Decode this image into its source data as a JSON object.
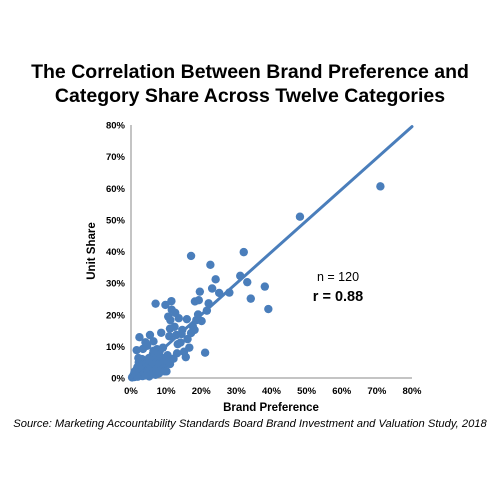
{
  "chart_data": {
    "type": "scatter",
    "title_lines": [
      "The Correlation Between Brand Preference and",
      "Category Share Across Twelve Categories"
    ],
    "xlabel": "Brand Preference",
    "ylabel": "Unit Share",
    "xlim": [
      0,
      80
    ],
    "ylim": [
      0,
      80
    ],
    "xticks": [
      "0%",
      "10%",
      "20%",
      "30%",
      "40%",
      "50%",
      "60%",
      "70%",
      "80%"
    ],
    "yticks": [
      "0%",
      "10%",
      "20%",
      "30%",
      "40%",
      "50%",
      "60%",
      "70%",
      "80%"
    ],
    "grid": false,
    "annotations": [
      "n = 120",
      "r = 0.88"
    ],
    "series": [
      {
        "color": "#4a7ebb",
        "points": [
          [
            0.3,
            0.2
          ],
          [
            0.6,
            0.5
          ],
          [
            0.8,
            1.1
          ],
          [
            1.0,
            0.3
          ],
          [
            1.2,
            1.8
          ],
          [
            1.4,
            0.7
          ],
          [
            1.5,
            2.5
          ],
          [
            1.6,
            1.3
          ],
          [
            1.8,
            3.4
          ],
          [
            1.9,
            0.4
          ],
          [
            2.0,
            1.7
          ],
          [
            2.2,
            5.0
          ],
          [
            2.3,
            2.4
          ],
          [
            2.5,
            0.9
          ],
          [
            2.6,
            4.1
          ],
          [
            2.8,
            1.6
          ],
          [
            3.0,
            3.0
          ],
          [
            3.1,
            6.0
          ],
          [
            3.3,
            0.6
          ],
          [
            3.5,
            2.2
          ],
          [
            3.6,
            4.5
          ],
          [
            3.8,
            1.4
          ],
          [
            4.0,
            3.8
          ],
          [
            4.2,
            0.8
          ],
          [
            4.4,
            2.9
          ],
          [
            4.6,
            5.5
          ],
          [
            4.8,
            1.9
          ],
          [
            5.0,
            3.6
          ],
          [
            5.2,
            0.5
          ],
          [
            5.4,
            2.6
          ],
          [
            5.6,
            4.9
          ],
          [
            5.8,
            1.2
          ],
          [
            6.0,
            3.3
          ],
          [
            6.2,
            7.5
          ],
          [
            6.5,
            2.0
          ],
          [
            6.8,
            4.2
          ],
          [
            7.0,
            1.0
          ],
          [
            7.2,
            2.8
          ],
          [
            7.5,
            5.8
          ],
          [
            7.8,
            3.9
          ],
          [
            8.0,
            1.5
          ],
          [
            8.3,
            2.4
          ],
          [
            8.6,
            6.5
          ],
          [
            9.0,
            4.8
          ],
          [
            9.3,
            3.1
          ],
          [
            9.6,
            2.1
          ],
          [
            10.0,
            5.5
          ],
          [
            10.4,
            7.2
          ],
          [
            1.0,
            2.0
          ],
          [
            1.7,
            2.8
          ],
          [
            2.9,
            3.8
          ],
          [
            3.7,
            5.2
          ],
          [
            4.3,
            4.6
          ],
          [
            5.1,
            6.3
          ],
          [
            5.9,
            5.0
          ],
          [
            6.6,
            6.6
          ],
          [
            3.4,
            9.2
          ],
          [
            2.4,
            12.9
          ],
          [
            1.6,
            8.8
          ],
          [
            4.6,
            10.2
          ],
          [
            5.4,
            13.6
          ],
          [
            6.4,
            11.6
          ],
          [
            7.4,
            9.1
          ],
          [
            8.2,
            8.6
          ],
          [
            7.0,
            23.5
          ],
          [
            9.8,
            23.1
          ],
          [
            10.6,
            19.4
          ],
          [
            11.2,
            18.3
          ],
          [
            11.6,
            21.6
          ],
          [
            11.1,
            15.6
          ],
          [
            10.9,
            13.2
          ],
          [
            12.4,
            16.2
          ],
          [
            12.9,
            13.6
          ],
          [
            13.3,
            10.7
          ],
          [
            14.1,
            11.2
          ],
          [
            14.6,
            15.2
          ],
          [
            13.6,
            18.9
          ],
          [
            12.6,
            20.6
          ],
          [
            15.1,
            8.3
          ],
          [
            15.6,
            6.6
          ],
          [
            16.1,
            12.3
          ],
          [
            17.1,
            14.2
          ],
          [
            17.6,
            16.3
          ],
          [
            18.1,
            15.2
          ],
          [
            18.6,
            18.3
          ],
          [
            19.1,
            20.1
          ],
          [
            18.2,
            24.2
          ],
          [
            19.3,
            24.6
          ],
          [
            20.1,
            18.0
          ],
          [
            19.6,
            27.3
          ],
          [
            22.1,
            23.6
          ],
          [
            23.1,
            28.3
          ],
          [
            21.6,
            21.3
          ],
          [
            22.6,
            35.8
          ],
          [
            24.1,
            31.2
          ],
          [
            25.1,
            26.9
          ],
          [
            28.0,
            27.0
          ],
          [
            31.1,
            32.3
          ],
          [
            32.1,
            39.8
          ],
          [
            33.1,
            30.3
          ],
          [
            34.1,
            25.1
          ],
          [
            38.1,
            28.9
          ],
          [
            39.1,
            21.8
          ],
          [
            17.1,
            38.6
          ],
          [
            48.1,
            51.0
          ],
          [
            71.0,
            60.6
          ],
          [
            21.1,
            8.0
          ],
          [
            10.1,
            2.1
          ],
          [
            11.1,
            4.4
          ],
          [
            12.1,
            6.1
          ],
          [
            9.1,
            9.6
          ],
          [
            8.6,
            14.3
          ],
          [
            16.6,
            9.6
          ],
          [
            14.4,
            13.9
          ],
          [
            6.4,
            8.6
          ],
          [
            4.1,
            11.3
          ],
          [
            2.1,
            6.3
          ],
          [
            13.1,
            7.8
          ],
          [
            15.9,
            18.6
          ],
          [
            11.5,
            24.3
          ]
        ]
      }
    ],
    "trendline": {
      "x": [
        0,
        80
      ],
      "y": [
        0.2,
        79.5
      ],
      "color": "#4a7ebb"
    }
  },
  "source_note": "Source:  Marketing Accountability Standards Board Brand Investment and Valuation Study, 2018"
}
